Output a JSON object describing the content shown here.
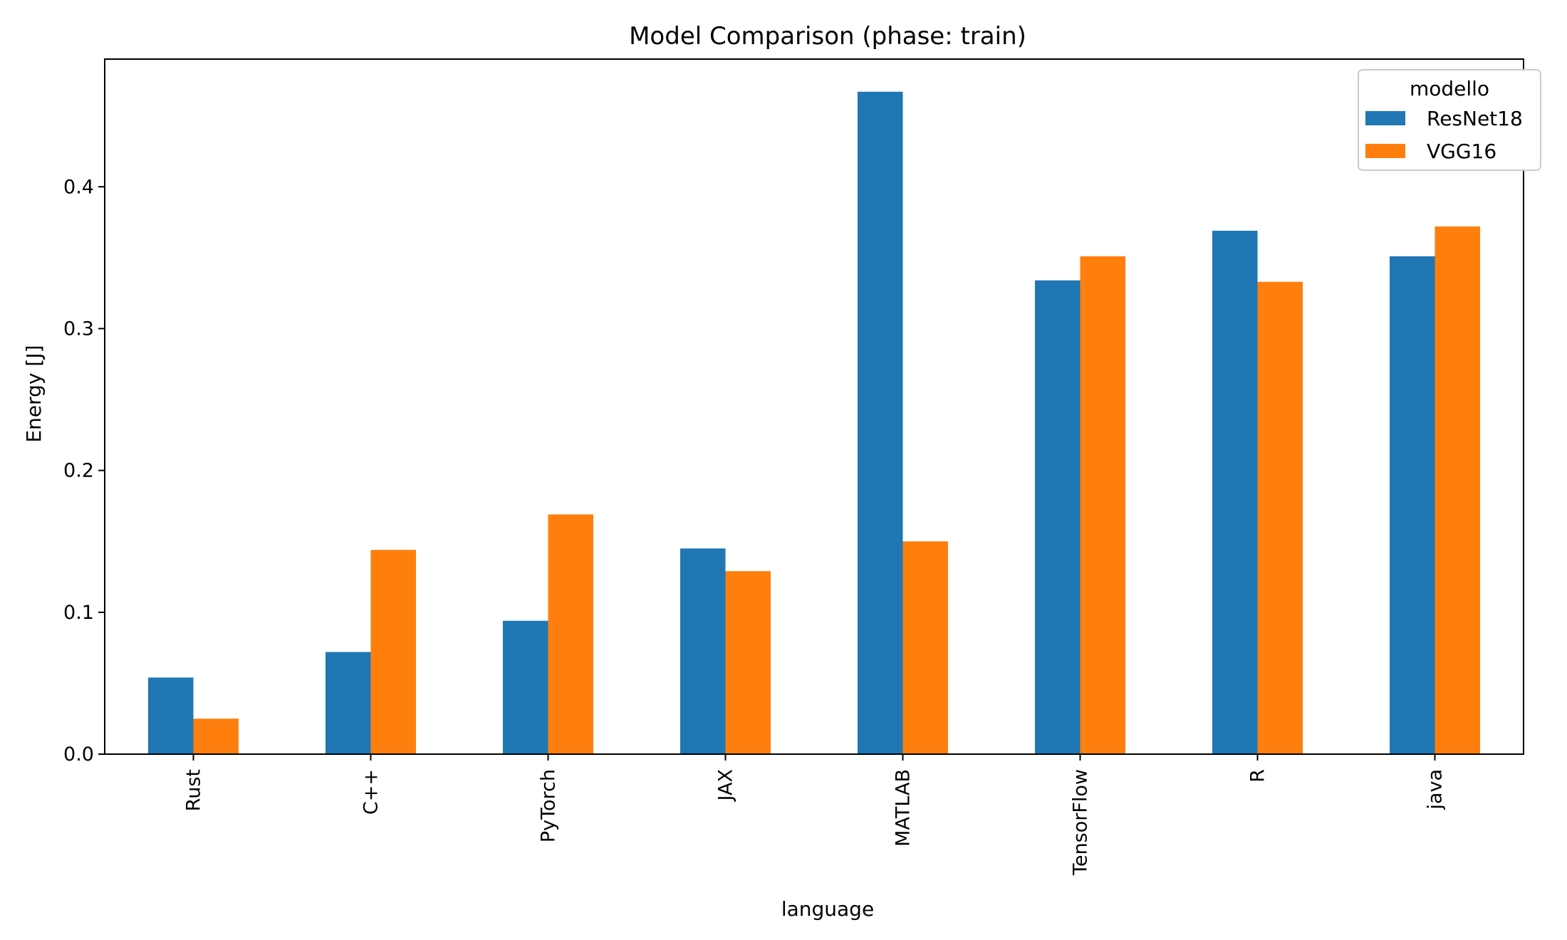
{
  "chart_data": {
    "type": "bar",
    "title": "Model Comparison (phase: train)",
    "xlabel": "language",
    "ylabel": "Energy [J]",
    "categories": [
      "Rust",
      "C++",
      "PyTorch",
      "JAX",
      "MATLAB",
      "TensorFlow",
      "R",
      "java"
    ],
    "series": [
      {
        "name": "ResNet18",
        "color": "#1f77b4",
        "values": [
          0.054,
          0.072,
          0.094,
          0.145,
          0.467,
          0.334,
          0.369,
          0.351
        ]
      },
      {
        "name": "VGG16",
        "color": "#ff7f0e",
        "values": [
          0.025,
          0.144,
          0.169,
          0.129,
          0.15,
          0.351,
          0.333,
          0.372
        ]
      }
    ],
    "ylim": [
      0,
      0.49
    ],
    "yticks": [
      0.0,
      0.1,
      0.2,
      0.3,
      0.4
    ],
    "ytick_labels": [
      "0.0",
      "0.1",
      "0.2",
      "0.3",
      "0.4"
    ],
    "legend": {
      "title": "modello",
      "position": "top-right"
    },
    "grid": false
  }
}
